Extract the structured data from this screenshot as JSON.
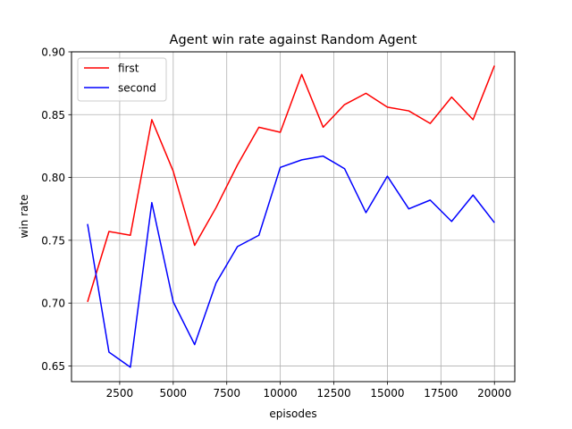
{
  "chart_data": {
    "type": "line",
    "title": "Agent win rate against Random Agent",
    "xlabel": "episodes",
    "ylabel": "win rate",
    "grid": true,
    "legend_position": "top-left",
    "xlim": [
      250,
      20950
    ],
    "ylim": [
      0.6375,
      0.9
    ],
    "xticks": [
      2500,
      5000,
      7500,
      10000,
      12500,
      15000,
      17500,
      20000
    ],
    "xtick_labels": [
      "2500",
      "5000",
      "7500",
      "10000",
      "12500",
      "15000",
      "17500",
      "20000"
    ],
    "yticks": [
      0.65,
      0.7,
      0.75,
      0.8,
      0.85,
      0.9
    ],
    "ytick_labels": [
      "0.65",
      "0.70",
      "0.75",
      "0.80",
      "0.85",
      "0.90"
    ],
    "x": [
      1000,
      2000,
      3000,
      4000,
      5000,
      6000,
      7000,
      8000,
      9000,
      10000,
      11000,
      12000,
      13000,
      14000,
      15000,
      16000,
      17000,
      18000,
      19000,
      20000
    ],
    "series": [
      {
        "name": "first",
        "color": "#ff0000",
        "values": [
          0.701,
          0.757,
          0.754,
          0.846,
          0.805,
          0.746,
          0.776,
          0.81,
          0.84,
          0.836,
          0.882,
          0.84,
          0.858,
          0.867,
          0.856,
          0.853,
          0.843,
          0.864,
          0.846,
          0.889
        ]
      },
      {
        "name": "second",
        "color": "#0000ff",
        "values": [
          0.763,
          0.661,
          0.649,
          0.78,
          0.701,
          0.667,
          0.716,
          0.745,
          0.754,
          0.808,
          0.814,
          0.817,
          0.807,
          0.772,
          0.801,
          0.775,
          0.782,
          0.765,
          0.786,
          0.764
        ]
      }
    ]
  }
}
